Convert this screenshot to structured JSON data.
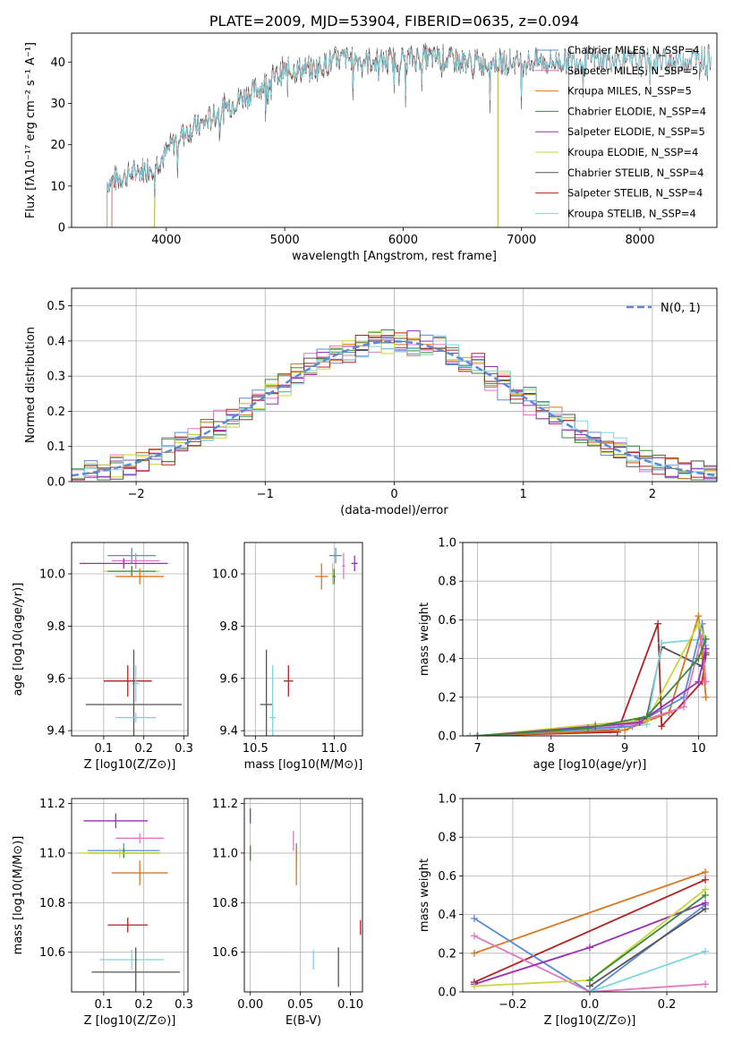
{
  "chart_data": [
    {
      "type": "line",
      "title": "PLATE=2009, MJD=53904, FIBERID=0635, z=0.094",
      "xlabel": "wavelength [Angstrom, rest frame]",
      "ylabel": "Flux [fλ10⁻¹⁷ erg cm⁻² s⁻¹ A⁻¹]",
      "xlim": [
        3200,
        8650
      ],
      "ylim": [
        0,
        47
      ],
      "xticks": [
        4000,
        5000,
        6000,
        7000,
        8000
      ],
      "yticks": [
        0,
        10,
        20,
        30,
        40
      ],
      "grid": false,
      "legend_position": "top-right",
      "continuum_x": [
        3500,
        3700,
        3900,
        4000,
        4100,
        4300,
        4500,
        4800,
        5000,
        5200,
        5500,
        5800,
        6000,
        6300,
        6600,
        7000,
        7300,
        7600,
        8000,
        8600
      ],
      "continuum_y": [
        11,
        13,
        15,
        18,
        22,
        25,
        29,
        34,
        38,
        38,
        41,
        40,
        41,
        41,
        40,
        40,
        40,
        41,
        40,
        41
      ],
      "series": [
        {
          "name": "Chabrier MILES, N_SSP=4",
          "color": "#5b8bd6",
          "x_start": 3540,
          "x_end": 7400
        },
        {
          "name": "Salpeter MILES, N_SSP=5",
          "color": "#e377c2",
          "x_start": 3540,
          "x_end": 7400
        },
        {
          "name": "Kroupa MILES, N_SSP=5",
          "color": "#d8761f",
          "x_start": 3540,
          "x_end": 7400
        },
        {
          "name": "Chabrier ELODIE, N_SSP=4",
          "color": "#3a8a3a",
          "x_start": 3900,
          "x_end": 6800
        },
        {
          "name": "Salpeter ELODIE, N_SSP=5",
          "color": "#9a2fb8",
          "x_start": 3900,
          "x_end": 6800
        },
        {
          "name": "Kroupa ELODIE, N_SSP=4",
          "color": "#c9d63a",
          "x_start": 3900,
          "x_end": 6800
        },
        {
          "name": "Chabrier STELIB, N_SSP=4",
          "color": "#555555",
          "x_start": 3500,
          "x_end": 8600
        },
        {
          "name": "Salpeter STELIB, N_SSP=4",
          "color": "#b22222",
          "x_start": 3500,
          "x_end": 8600
        },
        {
          "name": "Kroupa STELIB, N_SSP=4",
          "color": "#7fd4e0",
          "x_start": 3500,
          "x_end": 8600
        }
      ]
    },
    {
      "type": "line",
      "xlabel": "(data-model)/error",
      "ylabel": "Normed distribution",
      "xlim": [
        -2.5,
        2.5
      ],
      "ylim": [
        0,
        0.55
      ],
      "xticks": [
        -2,
        -1,
        0,
        1,
        2
      ],
      "yticks": [
        0.0,
        0.1,
        0.2,
        0.3,
        0.4,
        0.5
      ],
      "grid": true,
      "legend_position": "top-right",
      "reference_curve": {
        "name": "N(0, 1)",
        "mean": 0,
        "sigma": 1,
        "color": "#5b8bd6"
      },
      "histogram_bin_width": 0.1
    },
    {
      "type": "scatter",
      "xlabel": "Z [log10(Z/Z⊙)]",
      "ylabel": "age  [log10(age/yr)]",
      "xlim": [
        0.02,
        0.31
      ],
      "ylim": [
        9.38,
        10.12
      ],
      "xticks": [
        0.1,
        0.2,
        0.3
      ],
      "yticks": [
        9.4,
        9.6,
        9.8,
        10.0
      ],
      "grid": true,
      "points": [
        {
          "x": 0.17,
          "y": 10.07,
          "xerr": 0.06,
          "yerr": 0.03,
          "color": "#5b8bd6"
        },
        {
          "x": 0.18,
          "y": 10.05,
          "xerr": 0.06,
          "yerr": 0.03,
          "color": "#e377c2"
        },
        {
          "x": 0.15,
          "y": 10.04,
          "xerr": 0.11,
          "yerr": 0.02,
          "color": "#9a2fb8"
        },
        {
          "x": 0.17,
          "y": 10.01,
          "xerr": 0.07,
          "yerr": 0.02,
          "color": "#c9d63a"
        },
        {
          "x": 0.17,
          "y": 10.01,
          "xerr": 0.06,
          "yerr": 0.02,
          "color": "#3a8a3a"
        },
        {
          "x": 0.19,
          "y": 9.99,
          "xerr": 0.06,
          "yerr": 0.03,
          "color": "#d8761f"
        },
        {
          "x": 0.16,
          "y": 9.59,
          "xerr": 0.06,
          "yerr": 0.06,
          "color": "#b22222"
        },
        {
          "x": 0.18,
          "y": 9.58,
          "xerr": 0.01,
          "yerr": 0.07,
          "color": "#7fd4e0"
        },
        {
          "x": 0.175,
          "y": 9.5,
          "xerr": 0.12,
          "yerr": 0.21,
          "color": "#555555"
        },
        {
          "x": 0.18,
          "y": 9.45,
          "xerr": 0.05,
          "yerr": 0.02,
          "color": "#7fd4e0"
        }
      ]
    },
    {
      "type": "scatter",
      "xlabel": "mass [log10(M/M⊙)]",
      "ylabel": "",
      "xlim": [
        10.43,
        11.18
      ],
      "ylim": [
        9.38,
        10.12
      ],
      "xticks": [
        10.5,
        11.0
      ],
      "yticks": [
        9.4,
        9.6,
        9.8,
        10.0
      ],
      "grid": true,
      "points": [
        {
          "x": 11.01,
          "y": 10.07,
          "xerr": 0.04,
          "yerr": 0.03,
          "color": "#5b8bd6"
        },
        {
          "x": 11.06,
          "y": 10.03,
          "xerr": 0.01,
          "yerr": 0.05,
          "color": "#e377c2"
        },
        {
          "x": 11.13,
          "y": 10.04,
          "xerr": 0.02,
          "yerr": 0.03,
          "color": "#9a2fb8"
        },
        {
          "x": 10.99,
          "y": 10.0,
          "xerr": 0.01,
          "yerr": 0.04,
          "color": "#c9d63a"
        },
        {
          "x": 11.0,
          "y": 9.99,
          "xerr": 0.01,
          "yerr": 0.03,
          "color": "#3a8a3a"
        },
        {
          "x": 10.92,
          "y": 9.99,
          "xerr": 0.04,
          "yerr": 0.05,
          "color": "#d8761f"
        },
        {
          "x": 10.71,
          "y": 9.59,
          "xerr": 0.03,
          "yerr": 0.06,
          "color": "#b22222"
        },
        {
          "x": 10.57,
          "y": 9.5,
          "xerr": 0.04,
          "yerr": 0.21,
          "color": "#555555"
        },
        {
          "x": 10.61,
          "y": 9.45,
          "xerr": 0.02,
          "yerr": 0.2,
          "color": "#7fd4e0"
        }
      ]
    },
    {
      "type": "line",
      "xlabel": "age  [log10(age/yr)]",
      "ylabel": "mass weight",
      "xlim": [
        6.8,
        10.25
      ],
      "ylim": [
        0,
        1
      ],
      "xticks": [
        7,
        8,
        9,
        10
      ],
      "yticks": [
        0.0,
        0.2,
        0.4,
        0.6,
        0.8,
        1.0
      ],
      "grid": true,
      "series": [
        {
          "color": "#b22222",
          "x": [
            6.9,
            8.9,
            9.45,
            9.5,
            10.05,
            10.1
          ],
          "y": [
            0.0,
            0.02,
            0.58,
            0.05,
            0.28,
            0.42
          ]
        },
        {
          "color": "#555555",
          "x": [
            6.9,
            8.8,
            9.3,
            9.5,
            10.05,
            10.1
          ],
          "y": [
            0.0,
            0.03,
            0.1,
            0.46,
            0.36,
            0.43
          ]
        },
        {
          "color": "#7fd4e0",
          "x": [
            6.9,
            8.9,
            9.3,
            9.5,
            10.05,
            10.1
          ],
          "y": [
            0.0,
            0.04,
            0.06,
            0.48,
            0.5,
            0.47
          ]
        },
        {
          "color": "#d8761f",
          "x": [
            7.0,
            9.0,
            9.6,
            10.0,
            10.1
          ],
          "y": [
            0.0,
            0.03,
            0.12,
            0.62,
            0.2
          ]
        },
        {
          "color": "#5b8bd6",
          "x": [
            7.0,
            9.1,
            9.8,
            10.05,
            10.1
          ],
          "y": [
            0.0,
            0.05,
            0.2,
            0.58,
            0.45
          ]
        },
        {
          "color": "#e377c2",
          "x": [
            7.0,
            9.1,
            9.8,
            10.05,
            10.1
          ],
          "y": [
            0.0,
            0.06,
            0.15,
            0.52,
            0.28
          ]
        },
        {
          "color": "#c9d63a",
          "x": [
            7.0,
            8.6,
            9.3,
            10.0,
            10.1
          ],
          "y": [
            0.0,
            0.06,
            0.08,
            0.58,
            0.5
          ]
        },
        {
          "color": "#9a2fb8",
          "x": [
            7.0,
            8.6,
            9.2,
            10.0,
            10.1
          ],
          "y": [
            0.0,
            0.05,
            0.07,
            0.28,
            0.45
          ]
        },
        {
          "color": "#3a8a3a",
          "x": [
            7.0,
            8.5,
            9.3,
            10.0,
            10.1
          ],
          "y": [
            0.0,
            0.04,
            0.1,
            0.4,
            0.5
          ]
        }
      ]
    },
    {
      "type": "scatter",
      "xlabel": "Z [log10(Z/Z⊙)]",
      "ylabel": "mass [log10(M/M⊙)]",
      "xlim": [
        0.02,
        0.31
      ],
      "ylim": [
        10.44,
        11.22
      ],
      "xticks": [
        0.1,
        0.2,
        0.3
      ],
      "yticks": [
        10.6,
        10.8,
        11.0,
        11.2
      ],
      "grid": true,
      "points": [
        {
          "x": 0.13,
          "y": 11.13,
          "xerr": 0.08,
          "yerr": 0.03,
          "color": "#9a2fb8"
        },
        {
          "x": 0.19,
          "y": 11.06,
          "xerr": 0.06,
          "yerr": 0.02,
          "color": "#e377c2"
        },
        {
          "x": 0.15,
          "y": 11.01,
          "xerr": 0.09,
          "yerr": 0.03,
          "color": "#5b8bd6"
        },
        {
          "x": 0.15,
          "y": 11.0,
          "xerr": 0.09,
          "yerr": 0.02,
          "color": "#3a8a3a"
        },
        {
          "x": 0.14,
          "y": 11.0,
          "xerr": 0.1,
          "yerr": 0.02,
          "color": "#c9d63a"
        },
        {
          "x": 0.19,
          "y": 10.92,
          "xerr": 0.07,
          "yerr": 0.05,
          "color": "#d8761f"
        },
        {
          "x": 0.16,
          "y": 10.71,
          "xerr": 0.05,
          "yerr": 0.03,
          "color": "#b22222"
        },
        {
          "x": 0.17,
          "y": 10.57,
          "xerr": 0.08,
          "yerr": 0.04,
          "color": "#7fd4e0"
        },
        {
          "x": 0.18,
          "y": 10.52,
          "xerr": 0.11,
          "yerr": 0.1,
          "color": "#555555"
        }
      ]
    },
    {
      "type": "scatter",
      "xlabel": "E(B-V)",
      "ylabel": "",
      "xlim": [
        -0.006,
        0.112
      ],
      "ylim": [
        10.44,
        11.22
      ],
      "xticks": [
        0.0,
        0.05,
        0.1
      ],
      "xtick_labels": [
        "0.00",
        "0.05",
        "0.10"
      ],
      "yticks": [
        10.6,
        10.8,
        11.0,
        11.2
      ],
      "grid": true,
      "points": [
        {
          "x": 0.0,
          "y": 11.15,
          "yerr": 0.03,
          "color": "#9a2fb8"
        },
        {
          "x": 0.0,
          "y": 11.0,
          "yerr": 0.04,
          "color": "#c9d63a"
        },
        {
          "x": 0.0,
          "y": 11.0,
          "yerr": 0.03,
          "color": "#3a8a3a"
        },
        {
          "x": 0.043,
          "y": 11.05,
          "yerr": 0.04,
          "color": "#e377c2"
        },
        {
          "x": 0.046,
          "y": 11.0,
          "yerr": 0.04,
          "color": "#5b8bd6"
        },
        {
          "x": 0.046,
          "y": 10.95,
          "yerr": 0.08,
          "color": "#d8761f"
        },
        {
          "x": 0.063,
          "y": 10.57,
          "yerr": 0.04,
          "color": "#7fd4e0"
        },
        {
          "x": 0.088,
          "y": 10.54,
          "yerr": 0.08,
          "color": "#555555"
        },
        {
          "x": 0.11,
          "y": 10.7,
          "yerr": 0.03,
          "color": "#b22222"
        }
      ]
    },
    {
      "type": "line",
      "xlabel": "Z [log10(Z/Z⊙)]",
      "ylabel": "mass weight",
      "xlim": [
        -0.33,
        0.33
      ],
      "ylim": [
        0,
        1
      ],
      "xticks": [
        -0.2,
        0.0,
        0.2
      ],
      "yticks": [
        0.0,
        0.2,
        0.4,
        0.6,
        0.8,
        1.0
      ],
      "grid": true,
      "series": [
        {
          "color": "#d8761f",
          "x": [
            -0.3,
            0.3
          ],
          "y": [
            0.2,
            0.62
          ]
        },
        {
          "color": "#b22222",
          "x": [
            -0.3,
            0.3
          ],
          "y": [
            0.05,
            0.58
          ]
        },
        {
          "color": "#5b8bd6",
          "x": [
            -0.3,
            0.0,
            0.3
          ],
          "y": [
            0.38,
            0.0,
            0.45
          ]
        },
        {
          "color": "#e377c2",
          "x": [
            -0.3,
            0.0,
            0.3
          ],
          "y": [
            0.29,
            0.0,
            0.04
          ]
        },
        {
          "color": "#9a2fb8",
          "x": [
            -0.3,
            0.0,
            0.3
          ],
          "y": [
            0.04,
            0.23,
            0.46
          ]
        },
        {
          "color": "#c9d63a",
          "x": [
            -0.3,
            0.0,
            0.3
          ],
          "y": [
            0.03,
            0.06,
            0.53
          ]
        },
        {
          "color": "#3a8a3a",
          "x": [
            0.0,
            0.3
          ],
          "y": [
            0.06,
            0.5
          ]
        },
        {
          "color": "#555555",
          "x": [
            0.0,
            0.3
          ],
          "y": [
            0.03,
            0.43
          ]
        },
        {
          "color": "#7fd4e0",
          "x": [
            0.0,
            0.3
          ],
          "y": [
            0.0,
            0.21
          ]
        }
      ]
    }
  ]
}
